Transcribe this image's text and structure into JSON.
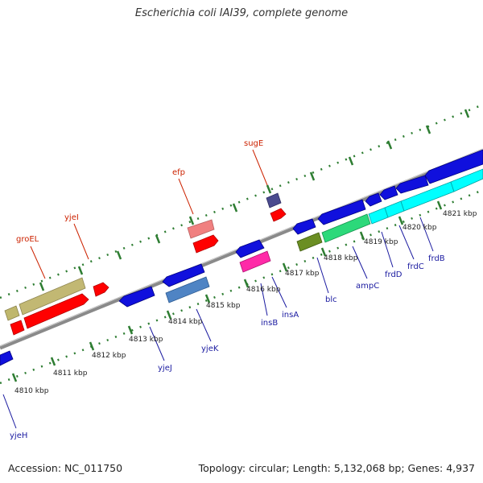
{
  "title": "Escherichia coli IAI39, complete genome",
  "footer": {
    "accession": "Accession: NC_011750",
    "summary": "Topology: circular; Length: 5,132,068 bp; Genes: 4,937"
  },
  "colors": {
    "backbone": "#8a8a8a",
    "tick": "#2e7d32",
    "label_forward": "#cc2200",
    "label_reverse": "#1a1aa0"
  },
  "ticks": [
    "4810 kbp",
    "4811 kbp",
    "4812 kbp",
    "4813 kbp",
    "4814 kbp",
    "4815 kbp",
    "4816 kbp",
    "4817 kbp",
    "4818 kbp",
    "4819 kbp",
    "4820 kbp",
    "4821 kbp"
  ],
  "gene_labels": {
    "groEL": "groEL",
    "yjeI": "yjeI",
    "efp": "efp",
    "sugE": "sugE",
    "yjeH": "yjeH",
    "yjeJ": "yjeJ",
    "yjeK": "yjeK",
    "insB": "insB",
    "insA": "insA",
    "blc": "blc",
    "ampC": "ampC",
    "frdD": "frdD",
    "frdC": "frdC",
    "frdB": "frdB"
  }
}
